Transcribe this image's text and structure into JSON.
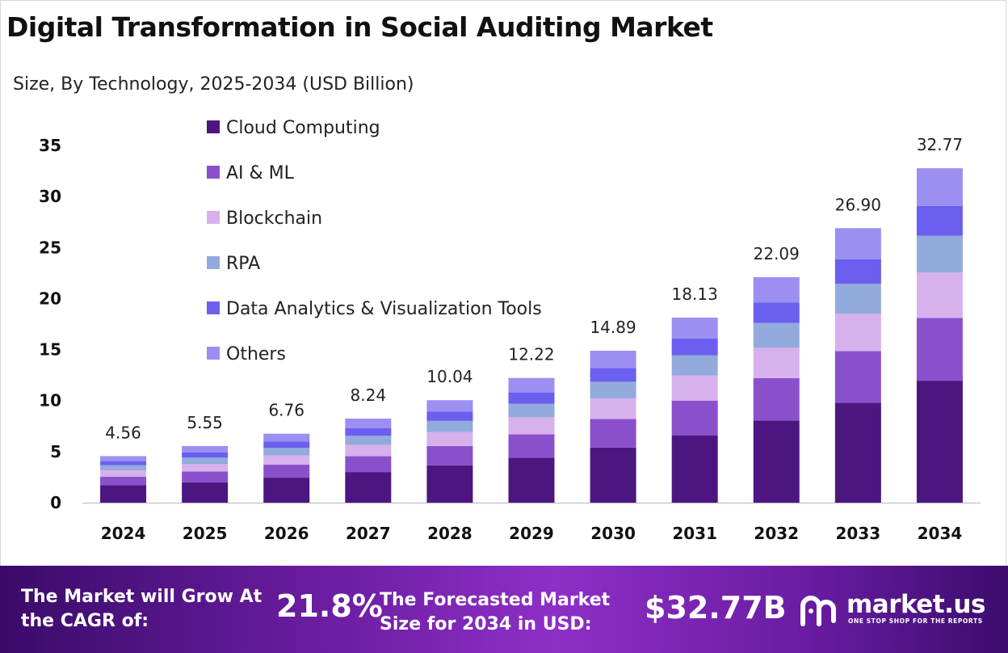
{
  "title": "Digital Transformation in Social Auditing Market",
  "subtitle": "Size, By Technology, 2025-2034 (USD Billion)",
  "chart_data": {
    "type": "bar",
    "stacked": true,
    "categories": [
      "2024",
      "2025",
      "2026",
      "2027",
      "2028",
      "2029",
      "2030",
      "2031",
      "2032",
      "2033",
      "2034"
    ],
    "totals": [
      4.56,
      5.55,
      6.76,
      8.24,
      10.04,
      12.22,
      14.89,
      18.13,
      22.09,
      26.9,
      32.77
    ],
    "total_labels": [
      "4.56",
      "5.55",
      "6.76",
      "8.24",
      "10.04",
      "12.22",
      "14.89",
      "18.13",
      "22.09",
      "26.90",
      "32.77"
    ],
    "series": [
      {
        "name": "Cloud Computing",
        "color": "#4c1680",
        "values": [
          1.7,
          2.0,
          2.45,
          3.0,
          3.65,
          4.4,
          5.4,
          6.6,
          8.05,
          9.8,
          11.95
        ]
      },
      {
        "name": "AI & ML",
        "color": "#8a50cc",
        "values": [
          0.85,
          1.05,
          1.27,
          1.55,
          1.9,
          2.3,
          2.8,
          3.4,
          4.15,
          5.05,
          6.15
        ]
      },
      {
        "name": "Blockchain",
        "color": "#d6b1ec",
        "values": [
          0.62,
          0.75,
          0.92,
          1.12,
          1.36,
          1.66,
          2.02,
          2.46,
          3.0,
          3.65,
          4.45
        ]
      },
      {
        "name": "RPA",
        "color": "#93aadc",
        "values": [
          0.5,
          0.61,
          0.74,
          0.9,
          1.1,
          1.34,
          1.63,
          1.99,
          2.42,
          2.95,
          3.6
        ]
      },
      {
        "name": "Data Analytics & Visualization Tools",
        "color": "#6b5ff0",
        "values": [
          0.4,
          0.5,
          0.6,
          0.74,
          0.9,
          1.1,
          1.34,
          1.63,
          1.98,
          2.41,
          2.93
        ]
      },
      {
        "name": "Others",
        "color": "#9b8ff2",
        "values": [
          0.49,
          0.64,
          0.78,
          0.93,
          1.13,
          1.42,
          1.7,
          2.05,
          2.49,
          3.04,
          3.69
        ]
      }
    ],
    "yticks": [
      0,
      5,
      10,
      15,
      20,
      25,
      30,
      35
    ],
    "ylim": [
      0,
      35
    ],
    "xlabel": "",
    "ylabel": "",
    "legend_position": "top-left",
    "grid": false
  },
  "footer": {
    "cagr_label": "The Market will Grow At the CAGR of:",
    "cagr_value": "21.8%",
    "forecast_label": "The Forecasted Market Size for 2034 in USD:",
    "forecast_value": "$32.77B",
    "brand_name": "market.us",
    "brand_tagline": "ONE STOP SHOP FOR THE REPORTS",
    "background_color": "#7a25b4"
  }
}
